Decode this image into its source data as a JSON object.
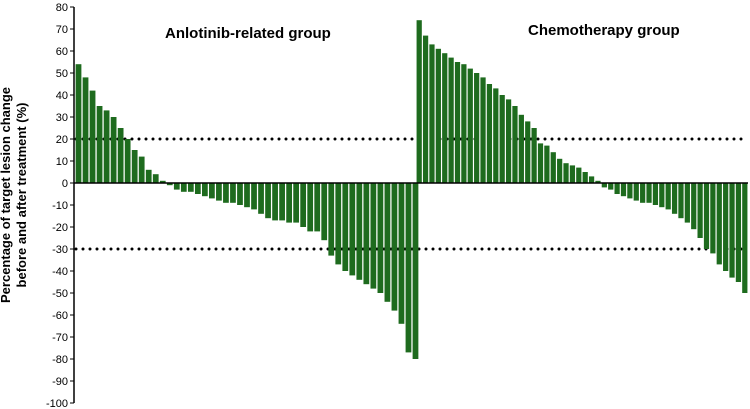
{
  "chart_data": {
    "type": "bar",
    "ylabel_line1": "Percentage of target lesion change",
    "ylabel_line2": "before and after treatment (%)",
    "ylim": [
      -100,
      80
    ],
    "yticks": [
      80,
      70,
      60,
      50,
      40,
      30,
      20,
      10,
      0,
      -10,
      -20,
      -30,
      -40,
      -50,
      -60,
      -70,
      -80,
      -90,
      -100
    ],
    "reference_lines": [
      20,
      -30
    ],
    "bar_color": "#1e6b1e",
    "groups": [
      {
        "label": "Anlotinib-related group",
        "values": [
          54,
          48,
          42,
          35,
          33,
          30,
          25,
          20,
          15,
          12,
          6,
          4,
          1,
          -1,
          -3,
          -4,
          -4,
          -5,
          -6,
          -7,
          -8,
          -9,
          -9,
          -10,
          -11,
          -12,
          -14,
          -16,
          -17,
          -17,
          -18,
          -18,
          -20,
          -22,
          -22,
          -26,
          -33,
          -37,
          -40,
          -42,
          -44,
          -46,
          -48,
          -50,
          -54,
          -58,
          -64,
          -77,
          -80
        ]
      },
      {
        "label": "Chemotherapy group",
        "values": [
          74,
          67,
          63,
          61,
          59,
          57,
          55,
          54,
          52,
          50,
          48,
          45,
          43,
          40,
          38,
          35,
          31,
          28,
          25,
          18,
          17,
          14,
          11,
          9,
          8,
          7,
          5,
          3,
          1,
          -2,
          -3,
          -5,
          -6,
          -7,
          -8,
          -9,
          -9,
          -10,
          -11,
          -12,
          -14,
          -16,
          -18,
          -21,
          -25,
          -30,
          -32,
          -37,
          -40,
          -43,
          -45,
          -50
        ]
      }
    ]
  }
}
